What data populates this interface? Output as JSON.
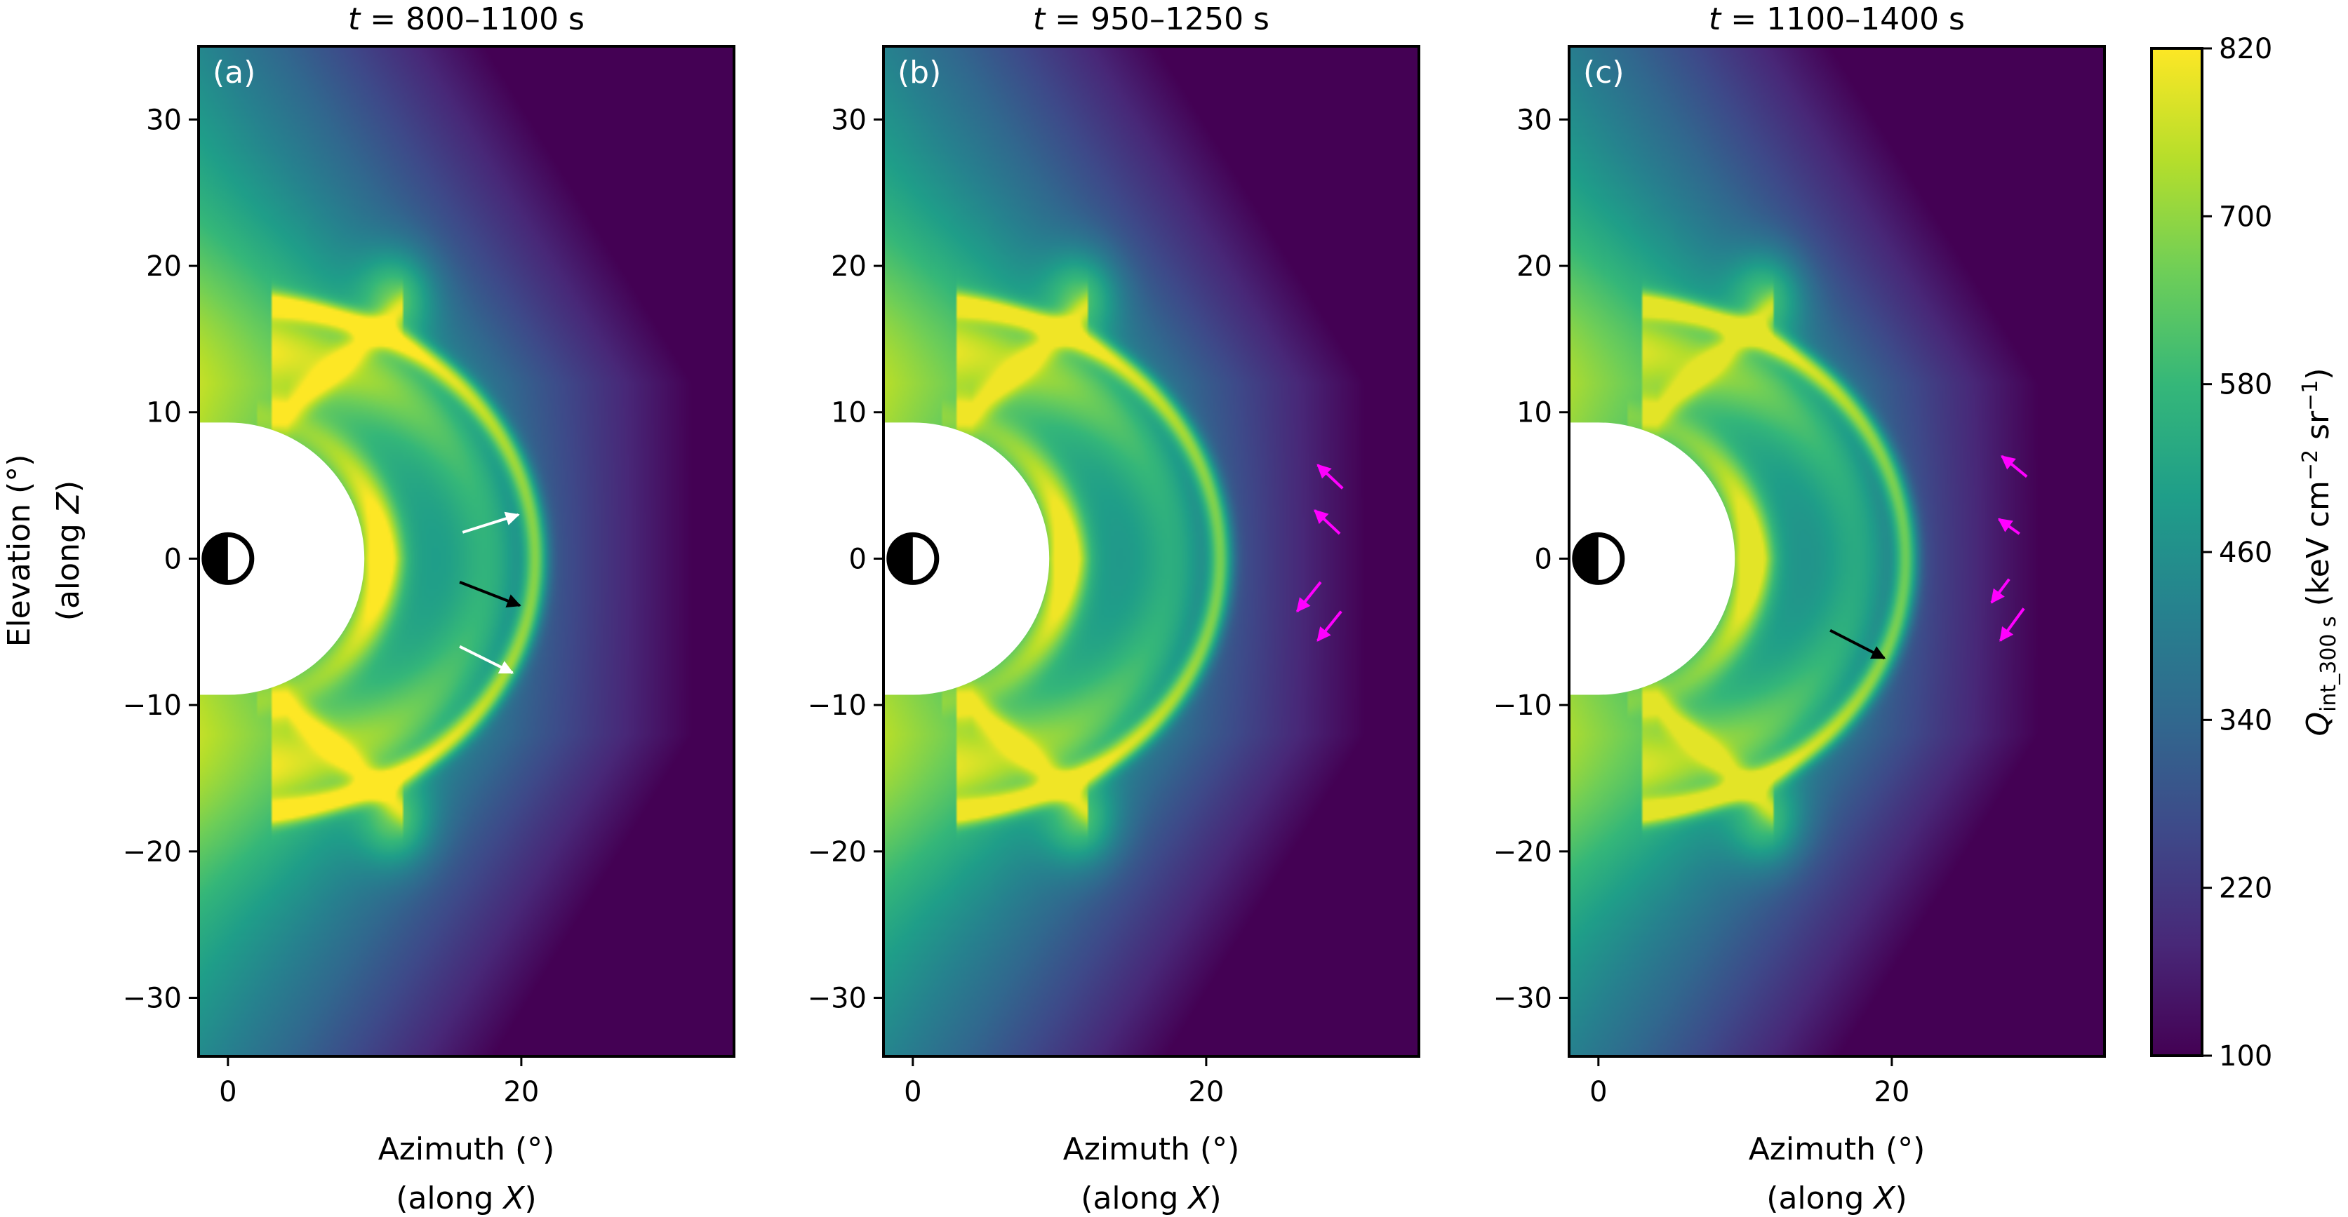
{
  "chart_data": {
    "type": "heatmap",
    "panels": [
      {
        "label": "(a)",
        "title": "t = 800–1100 s",
        "title_var": "t",
        "title_rest": " = 800–1100 s",
        "arrows": [
          {
            "color": "#ffffff",
            "from": [
              16.0,
              1.8
            ],
            "to": [
              19.8,
              3.0
            ]
          },
          {
            "color": "#000000",
            "from": [
              15.8,
              -1.6
            ],
            "to": [
              19.9,
              -3.2
            ]
          },
          {
            "color": "#ffffff",
            "from": [
              15.8,
              -6.0
            ],
            "to": [
              19.4,
              -7.8
            ]
          }
        ]
      },
      {
        "label": "(b)",
        "title": "t = 950–1250 s",
        "title_var": "t",
        "title_rest": " = 950–1250 s",
        "arrows": [
          {
            "color": "#ff00ff",
            "from": [
              29.3,
              4.8
            ],
            "to": [
              27.6,
              6.4
            ]
          },
          {
            "color": "#ff00ff",
            "from": [
              29.1,
              1.7
            ],
            "to": [
              27.4,
              3.3
            ]
          },
          {
            "color": "#ff00ff",
            "from": [
              27.8,
              -1.6
            ],
            "to": [
              26.2,
              -3.6
            ]
          },
          {
            "color": "#ff00ff",
            "from": [
              29.2,
              -3.6
            ],
            "to": [
              27.6,
              -5.6
            ]
          }
        ]
      },
      {
        "label": "(c)",
        "title": "t = 1100–1400 s",
        "title_var": "t",
        "title_rest": " = 1100–1400 s",
        "arrows": [
          {
            "color": "#000000",
            "from": [
              15.8,
              -4.9
            ],
            "to": [
              19.5,
              -6.8
            ]
          },
          {
            "color": "#ff00ff",
            "from": [
              29.2,
              5.6
            ],
            "to": [
              27.5,
              7.0
            ]
          },
          {
            "color": "#ff00ff",
            "from": [
              28.7,
              1.7
            ],
            "to": [
              27.3,
              2.7
            ]
          },
          {
            "color": "#ff00ff",
            "from": [
              28.0,
              -1.4
            ],
            "to": [
              26.8,
              -3.0
            ]
          },
          {
            "color": "#ff00ff",
            "from": [
              29.0,
              -3.4
            ],
            "to": [
              27.4,
              -5.6
            ]
          }
        ]
      }
    ],
    "xlabel_prefix": "Azimuth (°)",
    "xlabel_sub_pre": "(along ",
    "xlabel_sub_var": "X",
    "xlabel_sub_post": ")",
    "ylabel_prefix": "Elevation (°)",
    "ylabel_sub_pre": "(along ",
    "ylabel_sub_var": "Z",
    "ylabel_sub_post": ")",
    "xlim": [
      -2,
      34.5
    ],
    "ylim": [
      -34,
      35
    ],
    "xticks": [
      0,
      20
    ],
    "yticks": [
      -30,
      -20,
      -10,
      0,
      10,
      20,
      30
    ],
    "colorbar": {
      "label_var": "Q",
      "label_sub": "int_300 s",
      "label_units_pre": " (keV cm",
      "label_exp1": "−2",
      "label_units_mid": " sr",
      "label_exp2": "−1",
      "label_units_post": ")",
      "range": [
        100,
        820
      ],
      "ticks": [
        100,
        220,
        340,
        460,
        580,
        700,
        820
      ],
      "colormap": "viridis"
    },
    "colormap_stops": [
      "#440154",
      "#482878",
      "#3e4989",
      "#31688e",
      "#26828e",
      "#1f9e89",
      "#35b779",
      "#6ece58",
      "#b5de2b",
      "#fde725"
    ],
    "field_model": {
      "background_edge_value": 100,
      "shadow_radius_deg": 9.3,
      "shock_radius_deg": 21.0
    }
  }
}
